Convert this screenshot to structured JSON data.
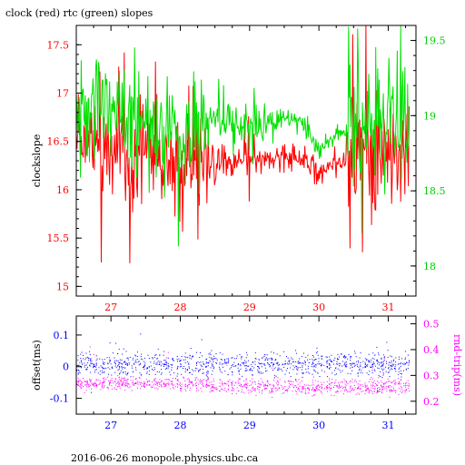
{
  "colors": {
    "clock": "#ff0000",
    "rtc": "#00e000",
    "offset": "#0000ff",
    "rtrip": "#ff00ff",
    "axis_left_top": "#ff0000",
    "axis_right_top": "#00cc00",
    "axis_left_bottom": "#0000ff",
    "axis_right_bottom": "#ff00ff",
    "frame": "#000000"
  },
  "chart_data": [
    {
      "type": "line",
      "title": "clock (red) rtc (green) slopes",
      "ylabel": "clockslope",
      "xlim": [
        26.5,
        31.4
      ],
      "ylim": [
        14.9,
        17.7
      ],
      "y2lim": [
        17.8,
        19.6
      ],
      "xticks": [
        "27",
        "28",
        "29",
        "30",
        "31"
      ],
      "yticks": [
        "15",
        "15.5",
        "16",
        "16.5",
        "17",
        "17.5"
      ],
      "y2ticks": [
        "18",
        "18.5",
        "19",
        "19.5"
      ],
      "grid": false,
      "series": [
        {
          "name": "clock",
          "axis": "left",
          "x": [
            26.5,
            26.75,
            27.0,
            27.25,
            27.5,
            27.75,
            28.0,
            28.25,
            28.5,
            28.75,
            29.0,
            29.25,
            29.5,
            29.75,
            30.0,
            30.25,
            30.5,
            30.75,
            31.0,
            31.3
          ],
          "values": [
            16.38,
            16.45,
            16.38,
            16.36,
            16.32,
            16.28,
            16.22,
            16.25,
            16.3,
            16.26,
            16.28,
            16.33,
            16.36,
            16.34,
            16.18,
            16.28,
            16.36,
            16.4,
            16.34,
            16.32
          ]
        },
        {
          "name": "rtc",
          "axis": "right",
          "x": [
            26.5,
            26.75,
            27.0,
            27.25,
            27.5,
            27.75,
            28.0,
            28.25,
            28.5,
            28.75,
            29.0,
            29.25,
            29.5,
            29.75,
            30.0,
            30.25,
            30.5,
            30.75,
            31.0,
            31.3
          ],
          "values": [
            19.02,
            19.08,
            19.05,
            19.0,
            18.98,
            18.93,
            18.84,
            18.9,
            19.0,
            18.94,
            18.9,
            18.92,
            18.98,
            18.96,
            18.75,
            18.88,
            18.96,
            18.98,
            19.0,
            18.96
          ]
        }
      ]
    },
    {
      "type": "scatter",
      "ylabel": "offset(ms)",
      "y2label": "rnd-trip(ms)",
      "xlim": [
        26.5,
        31.4
      ],
      "ylim": [
        -0.15,
        0.16
      ],
      "y2lim": [
        0.15,
        0.53
      ],
      "xticks": [
        "27",
        "28",
        "29",
        "30",
        "31"
      ],
      "yticks": [
        "-0.1",
        "0",
        "0.1"
      ],
      "y2ticks": [
        "0.2",
        "0.3",
        "0.4",
        "0.5"
      ],
      "series": [
        {
          "name": "offset",
          "axis": "left",
          "center": 0.01,
          "spread": 0.035
        },
        {
          "name": "rnd-trip",
          "axis": "right",
          "center": 0.27,
          "spread": 0.025
        }
      ]
    }
  ],
  "footer": "2016-06-26 monopole.physics.ubc.ca"
}
